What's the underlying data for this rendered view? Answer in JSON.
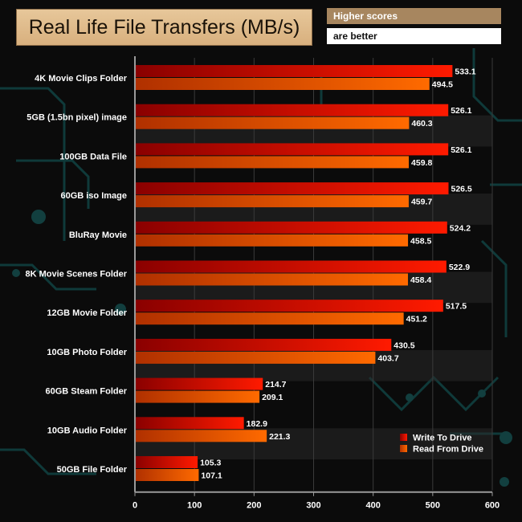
{
  "title": "Real Life File Transfers (MB/s)",
  "note_line1": "Higher scores",
  "note_line2": "are better",
  "colors": {
    "write": "#ff1a00",
    "write_dark": "#8a0000",
    "read": "#ff6a00",
    "read_dark": "#b03000",
    "band": "#2a2a2a"
  },
  "chart_data": {
    "type": "bar",
    "orientation": "horizontal",
    "title": "Real Life File Transfers (MB/s)",
    "categories": [
      "4K Movie Clips Folder",
      "5GB (1.5bn pixel) image",
      "100GB Data File",
      "60GB iso Image",
      "BluRay Movie",
      "8K Movie Scenes Folder",
      "12GB Movie Folder",
      "10GB Photo Folder",
      "60GB Steam Folder",
      "10GB Audio Folder",
      "50GB File Folder"
    ],
    "series": [
      {
        "name": "Write To  Drive",
        "values": [
          533.1,
          526.1,
          526.1,
          526.5,
          524.2,
          522.9,
          517.5,
          430.5,
          214.7,
          182.9,
          105.3
        ]
      },
      {
        "name": "Read From  Drive",
        "values": [
          494.5,
          460.3,
          459.8,
          459.7,
          458.5,
          458.4,
          451.2,
          403.7,
          209.1,
          221.3,
          107.1
        ]
      }
    ],
    "value_labels": {
      "write": [
        "533.1",
        "526.1",
        "526.1",
        "526.5",
        "524.2",
        "522.9",
        "517.5",
        "430.5",
        "214.7",
        "182.9",
        "105.3"
      ],
      "read": [
        "494.5",
        "460.3",
        "459.8",
        "459.7",
        "458.5",
        "458.4",
        "451.2",
        "403.7",
        "209.1",
        "221.3",
        "107.1"
      ]
    },
    "xlim": [
      0,
      600
    ],
    "xticks": [
      "0",
      "100",
      "200",
      "300",
      "400",
      "500",
      "600"
    ],
    "xtick_values": [
      0,
      100,
      200,
      300,
      400,
      500,
      600
    ],
    "grid": true,
    "legend_position": "bottom-right"
  }
}
